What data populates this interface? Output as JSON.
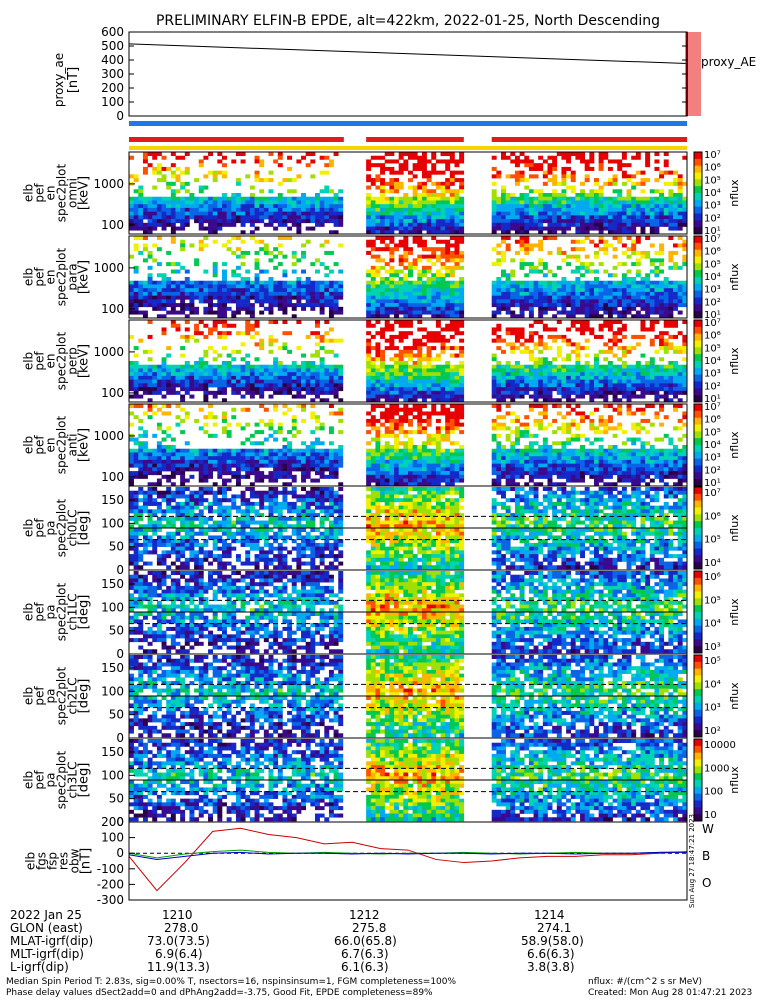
{
  "title": "PRELIMINARY ELFIN-B EPDE, alt=422km, 2022-01-25, North Descending",
  "colors": {
    "red": "#e31a1c",
    "blue": "#1f78e6",
    "yellow": "#f5d400",
    "w": "#cc0000",
    "b": "#00a000",
    "o": "#0000cc"
  },
  "chart_data": [
    {
      "type": "line",
      "panel": "proxy_ae",
      "ylabel": [
        "proxy_ae",
        "[nT]"
      ],
      "legend": "proxy_AE",
      "ylim": [
        0,
        600
      ],
      "yticks": [
        0,
        100,
        200,
        300,
        400,
        500,
        600
      ],
      "x": [
        0,
        1
      ],
      "values": [
        515,
        375
      ]
    },
    {
      "type": "bar",
      "panel": "status-bars",
      "segments_red": [
        [
          0.0,
          0.385
        ],
        [
          0.425,
          0.6
        ],
        [
          0.65,
          1.0
        ]
      ],
      "segments_blue": [
        [
          0.0,
          1.0
        ]
      ],
      "segments_yellow": [
        [
          0.0,
          1.0
        ]
      ]
    },
    {
      "type": "heatmap",
      "panel": "spec-en-1",
      "ylabel": [
        "elb",
        "pef",
        "en",
        "spec2plot",
        "omni",
        "[keV]"
      ],
      "scale": "log",
      "ylim": [
        60,
        6000
      ],
      "yticks": [
        "100",
        "1000"
      ],
      "colorbar": {
        "label": "nflux",
        "ticks": [
          "10⁷",
          "10⁶",
          "10⁵",
          "10⁴",
          "10³",
          "10²",
          "10¹"
        ]
      }
    },
    {
      "type": "heatmap",
      "panel": "spec-en-2",
      "ylabel": [
        "elb",
        "pef",
        "en",
        "spec2plot",
        "para",
        "[keV]"
      ],
      "scale": "log",
      "ylim": [
        60,
        6000
      ],
      "yticks": [
        "100",
        "1000"
      ],
      "colorbar": {
        "label": "nflux",
        "ticks": [
          "10⁷",
          "10⁶",
          "10⁵",
          "10⁴",
          "10³",
          "10²",
          "10¹"
        ]
      }
    },
    {
      "type": "heatmap",
      "panel": "spec-en-3",
      "ylabel": [
        "elb",
        "pef",
        "en",
        "spec2plot",
        "perp",
        "[keV]"
      ],
      "scale": "log",
      "ylim": [
        60,
        6000
      ],
      "yticks": [
        "100",
        "1000"
      ],
      "colorbar": {
        "label": "nflux",
        "ticks": [
          "10⁷",
          "10⁶",
          "10⁵",
          "10⁴",
          "10³",
          "10²",
          "10¹"
        ]
      }
    },
    {
      "type": "heatmap",
      "panel": "spec-en-4",
      "ylabel": [
        "elb",
        "pef",
        "en",
        "spec2plot",
        "anti",
        "[keV]"
      ],
      "scale": "log",
      "ylim": [
        60,
        6000
      ],
      "yticks": [
        "100",
        "1000"
      ],
      "colorbar": {
        "label": "nflux",
        "ticks": [
          "10⁷",
          "10⁶",
          "10⁵",
          "10⁴",
          "10³",
          "10²",
          "10¹"
        ]
      }
    },
    {
      "type": "heatmap",
      "panel": "spec-pa-0",
      "ylabel": [
        "elb",
        "pef",
        "pa",
        "spec2plot",
        "ch0LC",
        "[deg]"
      ],
      "ylim": [
        0,
        180
      ],
      "yticks": [
        "0",
        "50",
        "100",
        "150"
      ],
      "colorbar": {
        "label": "nflux",
        "ticks": [
          "10⁷",
          "10⁶",
          "10⁵",
          "10⁴"
        ]
      }
    },
    {
      "type": "heatmap",
      "panel": "spec-pa-1",
      "ylabel": [
        "elb",
        "pef",
        "pa",
        "spec2plot",
        "ch1LC",
        "[deg]"
      ],
      "ylim": [
        0,
        180
      ],
      "yticks": [
        "0",
        "50",
        "100",
        "150"
      ],
      "colorbar": {
        "label": "nflux",
        "ticks": [
          "10⁶",
          "10⁵",
          "10⁴",
          "10³"
        ]
      }
    },
    {
      "type": "heatmap",
      "panel": "spec-pa-2",
      "ylabel": [
        "elb",
        "pef",
        "pa",
        "spec2plot",
        "ch2LC",
        "[deg]"
      ],
      "ylim": [
        0,
        180
      ],
      "yticks": [
        "0",
        "50",
        "100",
        "150"
      ],
      "colorbar": {
        "label": "nflux",
        "ticks": [
          "10⁵",
          "10⁴",
          "10³",
          "10²"
        ]
      }
    },
    {
      "type": "heatmap",
      "panel": "spec-pa-3",
      "ylabel": [
        "elb",
        "pef",
        "pa",
        "spec2plot",
        "ch3LC",
        "[deg]"
      ],
      "ylim": [
        0,
        180
      ],
      "yticks": [
        "0",
        "50",
        "100",
        "150"
      ],
      "colorbar": {
        "label": "nflux",
        "ticks": [
          "10000",
          "1000",
          "100",
          "10"
        ]
      }
    },
    {
      "type": "line",
      "panel": "fgs",
      "ylabel": [
        "elb",
        "fgs",
        "fsp",
        "res",
        "obw",
        "[nT]"
      ],
      "ylim": [
        -300,
        200
      ],
      "yticks": [
        200,
        100,
        0,
        -100,
        -200,
        -300
      ],
      "legend": [
        "W",
        "B",
        "O"
      ],
      "series": [
        {
          "name": "W",
          "values": [
            -20,
            -240,
            -60,
            140,
            160,
            120,
            100,
            60,
            70,
            30,
            20,
            -40,
            -60,
            -50,
            -30,
            -20,
            -20,
            -10,
            -10,
            0,
            10
          ]
        },
        {
          "name": "B",
          "values": [
            0,
            -30,
            -5,
            10,
            20,
            5,
            0,
            5,
            0,
            -5,
            0,
            0,
            5,
            0,
            -5,
            0,
            5,
            0,
            0,
            5,
            10
          ]
        },
        {
          "name": "O",
          "values": [
            -10,
            -40,
            -20,
            0,
            5,
            -5,
            0,
            0,
            -5,
            0,
            -5,
            0,
            0,
            -5,
            0,
            0,
            -5,
            0,
            0,
            5,
            5
          ]
        }
      ],
      "side_note": "Sun Aug 27 18:47:21 2023"
    }
  ],
  "xaxis": {
    "ticks": [
      "1210",
      "1212",
      "1214"
    ],
    "rows": [
      {
        "label": "2022 Jan 25",
        "v": [
          "",
          "",
          ""
        ]
      },
      {
        "label": "GLON (east)",
        "v": [
          "278.0",
          "275.8",
          "274.1"
        ]
      },
      {
        "label": "MLAT-igrf(dip)",
        "v": [
          "73.0(73.5)",
          "66.0(65.8)",
          "58.9(58.0)"
        ]
      },
      {
        "label": "MLT-igrf(dip)",
        "v": [
          "6.9(6.4)",
          "6.7(6.3)",
          "6.6(6.3)"
        ]
      },
      {
        "label": "L-igrf(dip)",
        "v": [
          "11.9(13.3)",
          "6.1(6.3)",
          "3.8(3.8)"
        ]
      }
    ]
  },
  "footer": {
    "line1": "Median Spin Period T: 2.83s, sig=0.00% T, nsectors=16, nspinsinsum=1, FGM completeness=100%",
    "line2": "Phase delay values dSect2add=0 and dPhAng2add=-3.75, Good Fit, EPDE completeness=89%",
    "right1": "nflux: #/(cm^2 s sr MeV)",
    "right2": "Created: Mon Aug 28 01:47:21 2023"
  }
}
